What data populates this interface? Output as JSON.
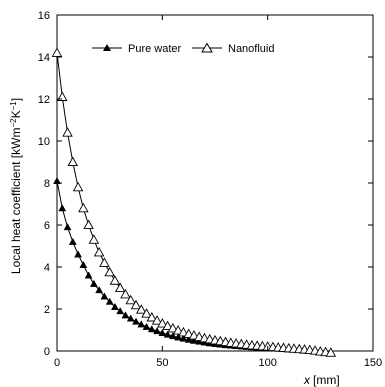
{
  "chart_data": {
    "type": "line",
    "title": "",
    "xlabel_var": "x",
    "xlabel_unit": "[mm]",
    "ylabel_main": "Local heat coefficient [kWm",
    "ylabel_sup1": "−2",
    "ylabel_mid": "K",
    "ylabel_sup2": "−1",
    "ylabel_end": "]",
    "xlim": [
      0,
      150
    ],
    "ylim": [
      0,
      16
    ],
    "xticks": [
      0,
      50,
      100,
      150
    ],
    "yticks": [
      0,
      2,
      4,
      6,
      8,
      10,
      12,
      14,
      16
    ],
    "grid": false,
    "legend_position": "top-center",
    "series": [
      {
        "name": "Pure water",
        "marker": "filled-triangle",
        "x": [
          0,
          2.5,
          5,
          7.5,
          10,
          12.5,
          15,
          17.5,
          20,
          22.5,
          25,
          27.5,
          30,
          32.5,
          35,
          37.5,
          40,
          42.5,
          45,
          47.5,
          50,
          52.5,
          55,
          57.5,
          60,
          62.5,
          65,
          67.5,
          70,
          72.5,
          75,
          77.5,
          80,
          82.5,
          85,
          87.5,
          90,
          92.5,
          95,
          97.5,
          100,
          102.5,
          105,
          107.5,
          110,
          112.5,
          115,
          117.5,
          120
        ],
        "y": [
          8.1,
          6.8,
          5.9,
          5.2,
          4.6,
          4.1,
          3.6,
          3.2,
          2.9,
          2.6,
          2.35,
          2.1,
          1.9,
          1.7,
          1.55,
          1.4,
          1.27,
          1.15,
          1.04,
          0.95,
          0.86,
          0.78,
          0.71,
          0.65,
          0.59,
          0.54,
          0.49,
          0.45,
          0.41,
          0.37,
          0.34,
          0.31,
          0.28,
          0.26,
          0.24,
          0.22,
          0.2,
          0.18,
          0.16,
          0.15,
          0.14,
          0.12,
          0.11,
          0.1,
          0.09,
          0.08,
          0.07,
          0.06,
          0.05
        ]
      },
      {
        "name": "Nanofluid",
        "marker": "open-triangle",
        "x": [
          0,
          2.5,
          5,
          7.5,
          10,
          12.5,
          15,
          17.5,
          20,
          22.5,
          25,
          27.5,
          30,
          32.5,
          35,
          37.5,
          40,
          42.5,
          45,
          47.5,
          50,
          52.5,
          55,
          57.5,
          60,
          62.5,
          65,
          67.5,
          70,
          72.5,
          75,
          77.5,
          80,
          82.5,
          85,
          87.5,
          90,
          92.5,
          95,
          97.5,
          100,
          102.5,
          105,
          107.5,
          110,
          112.5,
          115,
          117.5,
          120,
          122.5,
          125,
          127.5,
          130
        ],
        "y": [
          14.2,
          12.1,
          10.4,
          9.0,
          7.8,
          6.8,
          6.0,
          5.3,
          4.7,
          4.2,
          3.75,
          3.35,
          3.0,
          2.7,
          2.42,
          2.18,
          1.97,
          1.78,
          1.6,
          1.45,
          1.31,
          1.19,
          1.08,
          0.98,
          0.89,
          0.81,
          0.74,
          0.67,
          0.61,
          0.56,
          0.51,
          0.47,
          0.43,
          0.39,
          0.36,
          0.33,
          0.3,
          0.27,
          0.25,
          0.23,
          0.21,
          0.19,
          0.17,
          0.15,
          0.13,
          0.11,
          0.09,
          0.07,
          0.05,
          0.02,
          -0.02,
          -0.05,
          -0.08
        ]
      }
    ]
  }
}
